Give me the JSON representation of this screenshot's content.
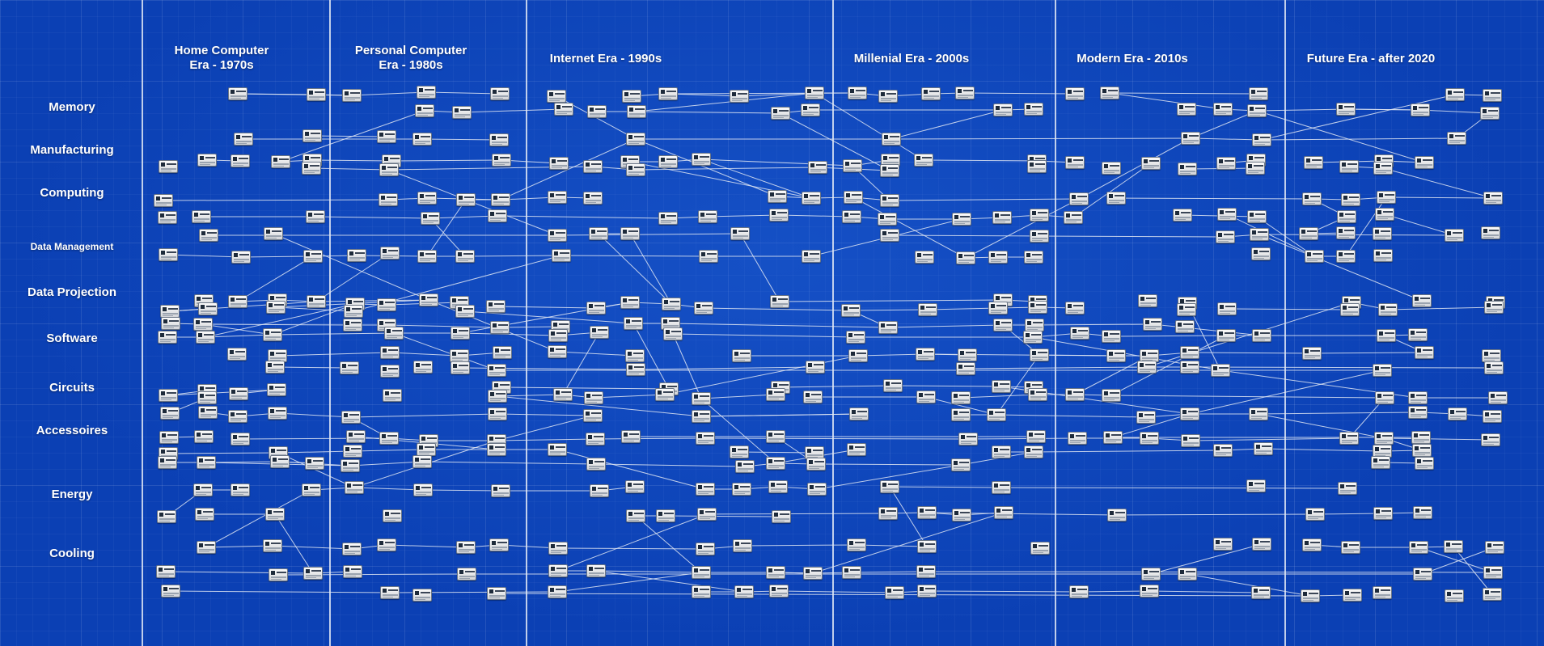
{
  "eras": [
    {
      "title": "Home Computer\nEra - 1970s"
    },
    {
      "title": "Personal Computer\nEra - 1980s"
    },
    {
      "title": "Internet Era - 1990s"
    },
    {
      "title": "Millenial Era - 2000s"
    },
    {
      "title": "Modern Era - 2010s"
    },
    {
      "title": "Future Era - after 2020"
    }
  ],
  "rows": [
    {
      "label": "Memory"
    },
    {
      "label": "Manufacturing"
    },
    {
      "label": "Computing"
    },
    {
      "label": "Data Management"
    },
    {
      "label": "Data Projection"
    },
    {
      "label": "Software"
    },
    {
      "label": "Circuits"
    },
    {
      "label": "Accessoires"
    },
    {
      "label": "Energy"
    },
    {
      "label": "Cooling"
    }
  ],
  "colors": {
    "background": "#0b40b4",
    "divider": "#e1e8f5",
    "node_fill": "#e8e9ec",
    "link": "#dfe6f3"
  }
}
